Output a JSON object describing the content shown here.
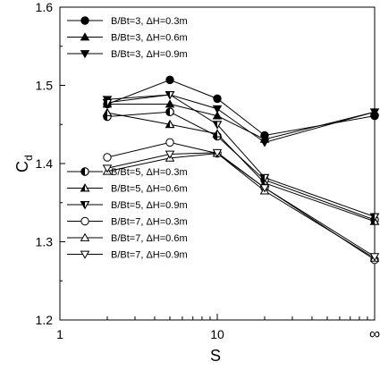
{
  "chart_data": {
    "type": "line",
    "xlabel": "S",
    "ylabel": "C",
    "ylabel_subscript": "d",
    "x_scale": "log",
    "xlim": [
      1,
      100
    ],
    "ylim": [
      1.2,
      1.6
    ],
    "x_ticks": [
      {
        "value": 1,
        "label": "1"
      },
      {
        "value": 10,
        "label": "10"
      },
      {
        "value": 100,
        "label": "∞"
      }
    ],
    "y_ticks": [
      1.2,
      1.3,
      1.4,
      1.5,
      1.6
    ],
    "y_tick_labels": [
      "1.2",
      "1.3",
      "1.4",
      "1.5",
      "1.6"
    ],
    "x": [
      2,
      5,
      10,
      20,
      "∞"
    ],
    "grid": false,
    "series": [
      {
        "name": "B/Bt=3, ΔH=0.3m",
        "marker": "circle-filled",
        "values": [
          1.476,
          1.507,
          1.483,
          1.436,
          1.461
        ]
      },
      {
        "name": "B/Bt=3, ΔH=0.6m",
        "marker": "triangle-up-filled",
        "values": [
          1.476,
          1.476,
          1.461,
          1.431,
          1.466
        ]
      },
      {
        "name": "B/Bt=3, ΔH=0.9m",
        "marker": "triangle-down-filled",
        "values": [
          1.482,
          1.488,
          1.47,
          1.427,
          1.466
        ]
      },
      {
        "name": "B/Bt=5, ΔH=0.3m",
        "marker": "circle-half",
        "values": [
          1.46,
          1.466,
          1.435,
          1.379,
          1.328
        ]
      },
      {
        "name": "B/Bt=5, ΔH=0.6m",
        "marker": "triangle-up-half",
        "values": [
          1.465,
          1.45,
          1.438,
          1.375,
          1.326
        ]
      },
      {
        "name": "B/Bt=5, ΔH=0.9m",
        "marker": "triangle-down-half",
        "values": [
          1.478,
          1.488,
          1.45,
          1.382,
          1.332
        ]
      },
      {
        "name": "B/Bt=7, ΔH=0.3m",
        "marker": "circle-open",
        "values": [
          1.408,
          1.427,
          1.413,
          1.369,
          1.277
        ]
      },
      {
        "name": "B/Bt=7, ΔH=0.6m",
        "marker": "triangle-up-open",
        "values": [
          1.39,
          1.407,
          1.413,
          1.365,
          1.279
        ]
      },
      {
        "name": "B/Bt=7, ΔH=0.9m",
        "marker": "triangle-down-open",
        "values": [
          1.394,
          1.412,
          1.414,
          1.369,
          1.281
        ]
      }
    ],
    "legends": [
      {
        "position": "top-left",
        "series": [
          0,
          1,
          2
        ]
      },
      {
        "position": "bottom-left",
        "series": [
          3,
          4,
          5,
          6,
          7,
          8
        ]
      }
    ]
  }
}
